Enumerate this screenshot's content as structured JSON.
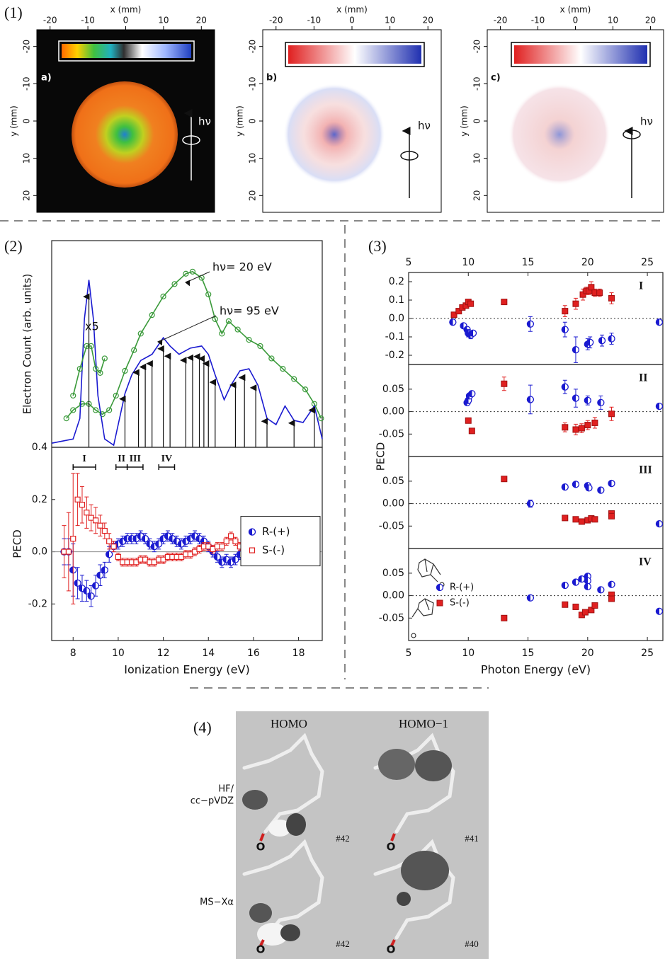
{
  "panel1": {
    "label": "(1)",
    "images": [
      {
        "tag": "a)",
        "xlabel": "x (mm)",
        "ylabel": "y (mm)",
        "xlim": [
          -23.5,
          23.5
        ],
        "ylim": [
          -24.5,
          24.5
        ],
        "yinvert": true,
        "xticks": [
          -20,
          -10,
          0,
          10,
          20
        ],
        "yticks": [
          -20,
          -10,
          0,
          10,
          20
        ],
        "arrow_label": "hν"
      },
      {
        "tag": "b)",
        "xlabel": "x (mm)",
        "ylabel": "y (mm)",
        "xlim": [
          -23.5,
          23.5
        ],
        "ylim": [
          -24.5,
          24.5
        ],
        "yinvert": true,
        "xticks": [
          -20,
          -10,
          0,
          10,
          20
        ],
        "yticks": [
          -20,
          -10,
          0,
          10,
          20
        ],
        "arrow_label": "hν"
      },
      {
        "tag": "c)",
        "xlabel": "x (mm)",
        "ylabel": "y (mm)",
        "xlim": [
          -23.5,
          23.5
        ],
        "ylim": [
          -24.5,
          24.5
        ],
        "yinvert": true,
        "xticks": [
          -20,
          -10,
          0,
          10,
          20
        ],
        "yticks": [
          -20,
          -10,
          0,
          10,
          20
        ],
        "arrow_label": "hν"
      }
    ]
  },
  "panel2": {
    "label": "(2)"
  },
  "panel3": {
    "label": "(3)",
    "ylabel": "PECD"
  },
  "chart_data": [
    {
      "type": "line",
      "ylabel": "Electron Count (arb. units)",
      "xlim": [
        7.05,
        19.05
      ],
      "ylim": [
        0,
        1
      ],
      "series": [
        {
          "name": "hν= 20 eV",
          "color": "#3a9a3a",
          "marker": "circle-open",
          "x": [
            7.7,
            8.0,
            8.4,
            8.7,
            9.0,
            9.3,
            9.6,
            9.9,
            10.3,
            10.7,
            11.0,
            11.5,
            12.0,
            12.5,
            13.0,
            13.3,
            13.7,
            14.0,
            14.3,
            14.6,
            14.9,
            15.3,
            15.8,
            16.3,
            16.8,
            17.3,
            17.8,
            18.3,
            18.7,
            19.0
          ],
          "values": [
            0.14,
            0.18,
            0.21,
            0.21,
            0.18,
            0.16,
            0.18,
            0.25,
            0.37,
            0.47,
            0.55,
            0.64,
            0.73,
            0.79,
            0.84,
            0.85,
            0.82,
            0.74,
            0.62,
            0.55,
            0.61,
            0.57,
            0.52,
            0.49,
            0.43,
            0.38,
            0.33,
            0.28,
            0.21,
            0.14
          ]
        },
        {
          "name": "hν= 95 eV",
          "color": "#1a1ad0",
          "x": [
            7.05,
            8.0,
            8.3,
            8.5,
            8.7,
            8.9,
            9.1,
            9.4,
            9.8,
            10.0,
            10.3,
            10.6,
            11.0,
            11.5,
            12.0,
            12.3,
            12.7,
            13.2,
            13.7,
            14.0,
            14.3,
            14.7,
            15.0,
            15.4,
            15.8,
            16.2,
            16.6,
            17.0,
            17.4,
            17.8,
            18.2,
            18.7,
            19.05
          ],
          "values": [
            0.02,
            0.04,
            0.14,
            0.62,
            0.81,
            0.62,
            0.25,
            0.04,
            0.01,
            0.11,
            0.26,
            0.35,
            0.42,
            0.45,
            0.53,
            0.49,
            0.45,
            0.48,
            0.49,
            0.45,
            0.35,
            0.23,
            0.3,
            0.37,
            0.38,
            0.3,
            0.14,
            0.11,
            0.2,
            0.13,
            0.12,
            0.2,
            0.04
          ]
        },
        {
          "name": "x5",
          "color": "#3a9a3a",
          "marker": "circle-open",
          "x": [
            8.0,
            8.3,
            8.6,
            8.8,
            9.0,
            9.2,
            9.4
          ],
          "values": [
            0.25,
            0.38,
            0.49,
            0.49,
            0.38,
            0.36,
            0.43
          ]
        }
      ],
      "arrows": [
        8.7,
        10.3,
        10.9,
        11.2,
        11.5,
        12.0,
        12.3,
        13.0,
        13.3,
        13.6,
        13.8,
        14.0,
        14.3,
        15.2,
        15.6,
        16.1,
        16.6,
        17.8,
        18.7
      ]
    },
    {
      "type": "errorbar",
      "ylabel": "PECD",
      "xlabel": "Ionization Energy (eV)",
      "xlim": [
        7.05,
        19.05
      ],
      "ylim": [
        -0.34,
        0.4
      ],
      "xticks": [
        8,
        10,
        12,
        14,
        16,
        18
      ],
      "yticks": [
        -0.2,
        {
          "value": 0,
          "label": "0.0"
        },
        0.2,
        0.4
      ],
      "zero_line": "solid",
      "legend": "right",
      "regions": [
        {
          "label": "I",
          "range": [
            8.0,
            9.0
          ]
        },
        {
          "label": "II",
          "range": [
            9.9,
            10.4
          ]
        },
        {
          "label": "III",
          "range": [
            10.4,
            11.1
          ]
        },
        {
          "label": "IV",
          "range": [
            11.8,
            12.5
          ]
        }
      ],
      "x": [
        7.6,
        7.8,
        8.0,
        8.2,
        8.4,
        8.6,
        8.8,
        9.0,
        9.2,
        9.4,
        9.6,
        9.8,
        10.0,
        10.2,
        10.4,
        10.6,
        10.8,
        11.0,
        11.2,
        11.4,
        11.6,
        11.8,
        12.0,
        12.2,
        12.4,
        12.6,
        12.8,
        13.0,
        13.2,
        13.4,
        13.6,
        13.8,
        14.0,
        14.2,
        14.4,
        14.6,
        14.8,
        15.0,
        15.2,
        15.4,
        15.6,
        15.8,
        16.0,
        16.2
      ],
      "series": [
        {
          "name": "R-(+)",
          "color": "#1a1ad0",
          "marker": "circle-half",
          "values": [
            0.0,
            0.0,
            -0.07,
            -0.12,
            -0.14,
            -0.15,
            -0.17,
            -0.13,
            -0.09,
            -0.07,
            -0.01,
            0.02,
            0.03,
            0.04,
            0.05,
            0.05,
            0.05,
            0.06,
            0.05,
            0.03,
            0.02,
            0.03,
            0.05,
            0.06,
            0.05,
            0.04,
            0.03,
            0.04,
            0.05,
            0.06,
            0.05,
            0.04,
            0.02,
            0.0,
            -0.02,
            -0.04,
            -0.03,
            -0.04,
            -0.03,
            -0.01,
            0.01,
            0.0,
            -0.03,
            -0.02
          ],
          "errors": [
            0.05,
            0.05,
            0.1,
            0.06,
            0.05,
            0.04,
            0.04,
            0.04,
            0.04,
            0.03,
            0.03,
            0.02,
            0.02,
            0.02,
            0.02,
            0.02,
            0.02,
            0.02,
            0.02,
            0.02,
            0.02,
            0.02,
            0.02,
            0.02,
            0.02,
            0.02,
            0.02,
            0.02,
            0.02,
            0.02,
            0.02,
            0.02,
            0.02,
            0.02,
            0.02,
            0.02,
            0.02,
            0.02,
            0.02,
            0.02,
            0.02,
            0.02,
            0.02,
            0.02
          ]
        },
        {
          "name": "S-(-)",
          "color": "#e02020",
          "marker": "square-open",
          "values": [
            0.0,
            0.0,
            0.05,
            0.2,
            0.18,
            0.15,
            0.13,
            0.12,
            0.1,
            0.08,
            0.04,
            0.02,
            -0.02,
            -0.04,
            -0.04,
            -0.04,
            -0.04,
            -0.03,
            -0.03,
            -0.04,
            -0.04,
            -0.03,
            -0.03,
            -0.02,
            -0.02,
            -0.02,
            -0.02,
            -0.01,
            -0.01,
            0.0,
            0.01,
            0.02,
            0.02,
            0.01,
            0.02,
            0.02,
            0.04,
            0.06,
            0.04,
            0.02,
            0.03,
            0.01,
            0.04,
            0.06
          ],
          "errors": [
            0.1,
            0.15,
            0.25,
            0.1,
            0.07,
            0.06,
            0.05,
            0.05,
            0.04,
            0.03,
            0.03,
            0.02,
            0.015,
            0.015,
            0.015,
            0.015,
            0.015,
            0.015,
            0.015,
            0.015,
            0.015,
            0.015,
            0.015,
            0.015,
            0.015,
            0.015,
            0.015,
            0.015,
            0.015,
            0.015,
            0.015,
            0.015,
            0.015,
            0.015,
            0.015,
            0.015,
            0.015,
            0.015,
            0.015,
            0.015,
            0.015,
            0.015,
            0.015,
            0.015
          ]
        }
      ]
    },
    {
      "type": "errorbar",
      "label": "I",
      "xlim": [
        5,
        26.3
      ],
      "ylim": [
        -0.25,
        0.25
      ],
      "xaxis": "top",
      "xticks": [
        5,
        10,
        15,
        20,
        25
      ],
      "yticks": [
        0.2,
        0.1,
        {
          "value": 0,
          "label": "0.0"
        },
        -0.1,
        -0.2
      ],
      "zero_line": "dotted",
      "series": [
        {
          "color": "#1a1ad0",
          "marker": "circle-half",
          "x": [
            8.7,
            9.6,
            9.9,
            10.0,
            10.2,
            10.4,
            15.2,
            18.1,
            19.0,
            20.0,
            20.2,
            21.2,
            22.0,
            26.0
          ],
          "values": [
            -0.02,
            -0.04,
            -0.06,
            -0.08,
            -0.09,
            -0.08,
            -0.03,
            -0.06,
            -0.17,
            -0.14,
            -0.13,
            -0.12,
            -0.11,
            -0.02
          ],
          "errors": [
            0.01,
            0.01,
            0.01,
            0.02,
            0.02,
            0.01,
            0.04,
            0.04,
            0.07,
            0.03,
            0.03,
            0.03,
            0.03,
            0.01
          ]
        },
        {
          "color": "#e02020",
          "marker": "square",
          "x": [
            8.8,
            9.2,
            9.5,
            9.8,
            10.0,
            10.2,
            13.0,
            18.1,
            19.0,
            19.6,
            19.9,
            20.1,
            20.3,
            20.6,
            21.0,
            22.0
          ],
          "values": [
            0.02,
            0.04,
            0.06,
            0.07,
            0.09,
            0.08,
            0.09,
            0.04,
            0.08,
            0.13,
            0.15,
            0.15,
            0.17,
            0.14,
            0.14,
            0.11
          ],
          "errors": [
            0.01,
            0.01,
            0.01,
            0.01,
            0.01,
            0.01,
            0.01,
            0.03,
            0.03,
            0.03,
            0.02,
            0.02,
            0.03,
            0.02,
            0.02,
            0.03
          ]
        }
      ]
    },
    {
      "type": "errorbar",
      "label": "II",
      "xlim": [
        5,
        26.3
      ],
      "ylim": [
        -0.1,
        0.105
      ],
      "yticks": [
        0.05,
        {
          "value": 0,
          "label": "0.00"
        },
        -0.05
      ],
      "zero_line": "dotted",
      "series": [
        {
          "color": "#1a1ad0",
          "marker": "circle-half",
          "x": [
            9.9,
            10.0,
            10.1,
            10.3,
            15.2,
            18.1,
            19.0,
            20.0,
            21.1,
            26.0
          ],
          "values": [
            0.02,
            0.025,
            0.035,
            0.04,
            0.027,
            0.055,
            0.03,
            0.025,
            0.02,
            0.012
          ],
          "errors": [
            0.005,
            0.005,
            0.005,
            0.005,
            0.032,
            0.015,
            0.02,
            0.01,
            0.015,
            0.004
          ]
        },
        {
          "color": "#e02020",
          "marker": "square",
          "x": [
            10.0,
            10.3,
            13.0,
            18.1,
            19.0,
            19.5,
            20.0,
            20.6,
            22.0
          ],
          "values": [
            -0.02,
            -0.043,
            0.062,
            -0.035,
            -0.04,
            -0.037,
            -0.03,
            -0.025,
            -0.005
          ],
          "errors": [
            0.004,
            0.004,
            0.015,
            0.01,
            0.012,
            0.01,
            0.01,
            0.012,
            0.015
          ]
        }
      ]
    },
    {
      "type": "errorbar",
      "label": "III",
      "xlim": [
        5,
        26.3
      ],
      "ylim": [
        -0.1,
        0.105
      ],
      "yticks": [
        0.05,
        {
          "value": 0,
          "label": "0.00"
        },
        -0.05
      ],
      "zero_line": "dotted",
      "series": [
        {
          "color": "#1a1ad0",
          "marker": "circle-half",
          "x": [
            15.2,
            18.1,
            19.0,
            20.0,
            20.1,
            21.1,
            22.0,
            26.0
          ],
          "values": [
            0.0,
            0.037,
            0.043,
            0.04,
            0.035,
            0.03,
            0.045,
            -0.045
          ],
          "errors": [
            0.008,
            0.005,
            0.005,
            0.006,
            0.006,
            0.004,
            0.004,
            0.003
          ]
        },
        {
          "color": "#e02020",
          "marker": "square",
          "x": [
            13.0,
            18.1,
            19.0,
            19.5,
            20.0,
            20.3,
            20.6,
            22.0,
            22.0
          ],
          "values": [
            0.055,
            -0.032,
            -0.035,
            -0.04,
            -0.037,
            -0.033,
            -0.035,
            -0.022,
            -0.028
          ],
          "errors": [
            0.003,
            0.003,
            0.004,
            0.005,
            0.005,
            0.006,
            0.004,
            0.005,
            0.005
          ]
        }
      ]
    },
    {
      "type": "errorbar",
      "label": "IV",
      "xlabel": "Photon Energy (eV)",
      "xlim": [
        5,
        26.3
      ],
      "ylim": [
        -0.1,
        0.105
      ],
      "xaxis": "bottom",
      "xticks": [
        5,
        10,
        15,
        20,
        25
      ],
      "yticks": [
        0.05,
        {
          "value": 0,
          "label": "0.00"
        },
        -0.05
      ],
      "zero_line": "dotted",
      "legend": "left",
      "series": [
        {
          "name": "R-(+)",
          "color": "#1a1ad0",
          "marker": "circle-half",
          "x": [
            15.2,
            18.1,
            19.0,
            19.5,
            20.0,
            20.0,
            20.0,
            21.1,
            22.0,
            26.0
          ],
          "values": [
            -0.005,
            0.023,
            0.03,
            0.037,
            0.043,
            0.033,
            0.02,
            0.013,
            0.025,
            -0.035
          ],
          "errors": [
            0.003,
            0.003,
            0.003,
            0.003,
            0.003,
            0.003,
            0.003,
            0.003,
            0.003,
            0.003
          ]
        },
        {
          "name": "S-(-)",
          "color": "#e02020",
          "marker": "square",
          "x": [
            13.0,
            18.1,
            19.0,
            19.5,
            19.8,
            20.3,
            20.6,
            22.0,
            22.0
          ],
          "values": [
            -0.05,
            -0.02,
            -0.025,
            -0.043,
            -0.037,
            -0.032,
            -0.022,
            0.002,
            -0.007
          ],
          "errors": [
            0.003,
            0.003,
            0.003,
            0.003,
            0.003,
            0.003,
            0.003,
            0.003,
            0.003
          ]
        }
      ]
    }
  ],
  "panel4": {
    "label": "(4)",
    "columns": [
      "HOMO",
      "HOMO−1"
    ],
    "atom_label": "O",
    "rows": [
      {
        "method": [
          "HF/",
          "cc−pVDZ"
        ],
        "orbitals": [
          "#42",
          "#41"
        ]
      },
      {
        "method": [
          "MS−Xα"
        ],
        "orbitals": [
          "#42",
          "#40"
        ]
      }
    ]
  }
}
